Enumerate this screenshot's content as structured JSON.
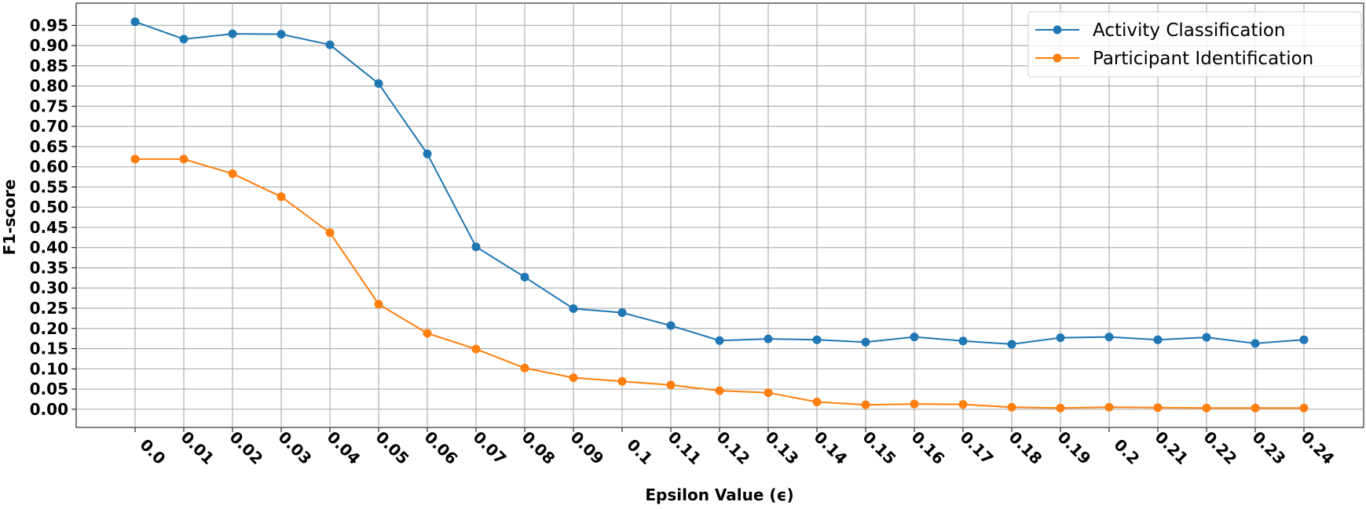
{
  "chart_data": {
    "type": "line",
    "title": "",
    "xlabel": "Epsilon Value (ϵ)",
    "ylabel": "F1-score",
    "categories": [
      "0.0",
      "0.01",
      "0.02",
      "0.03",
      "0.04",
      "0.05",
      "0.06",
      "0.07",
      "0.08",
      "0.09",
      "0.1",
      "0.11",
      "0.12",
      "0.13",
      "0.14",
      "0.15",
      "0.16",
      "0.17",
      "0.18",
      "0.19",
      "0.2",
      "0.21",
      "0.22",
      "0.23",
      "0.24"
    ],
    "yticks": [
      "0.00",
      "0.05",
      "0.10",
      "0.15",
      "0.20",
      "0.25",
      "0.30",
      "0.35",
      "0.40",
      "0.45",
      "0.50",
      "0.55",
      "0.60",
      "0.65",
      "0.70",
      "0.75",
      "0.80",
      "0.85",
      "0.90",
      "0.95"
    ],
    "ylim": [
      -0.045,
      1.005
    ],
    "grid": true,
    "legend_position": "top-right",
    "series": [
      {
        "name": "Activity Classification",
        "color": "#1f77b4",
        "values": [
          0.959,
          0.916,
          0.929,
          0.928,
          0.902,
          0.806,
          0.632,
          0.402,
          0.327,
          0.249,
          0.239,
          0.207,
          0.17,
          0.174,
          0.172,
          0.166,
          0.179,
          0.169,
          0.161,
          0.177,
          0.179,
          0.172,
          0.178,
          0.163,
          0.172
        ]
      },
      {
        "name": "Participant Identification",
        "color": "#ff7f0e",
        "values": [
          0.619,
          0.619,
          0.583,
          0.526,
          0.437,
          0.26,
          0.188,
          0.149,
          0.102,
          0.078,
          0.069,
          0.06,
          0.046,
          0.041,
          0.018,
          0.011,
          0.013,
          0.012,
          0.005,
          0.003,
          0.005,
          0.004,
          0.003,
          0.003,
          0.003
        ]
      }
    ]
  }
}
